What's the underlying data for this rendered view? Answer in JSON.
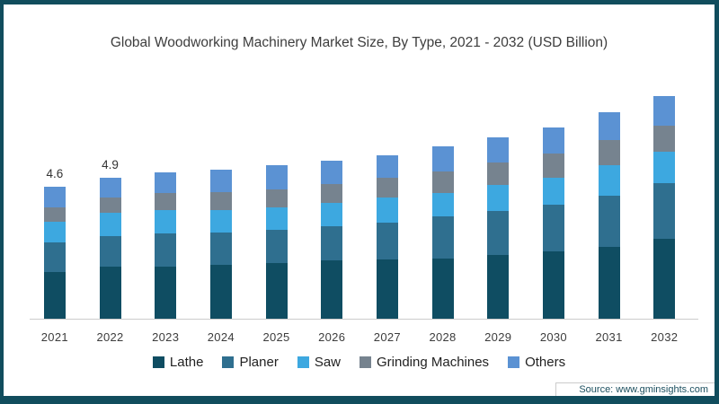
{
  "chart_data": {
    "type": "bar",
    "stacked": true,
    "title": "Global Woodworking Machinery Market Size, By Type, 2021 - 2032 (USD Billion)",
    "xlabel": "",
    "ylabel": "",
    "ylim": [
      0,
      8
    ],
    "grid": false,
    "legend_position": "bottom",
    "categories": [
      "2021",
      "2022",
      "2023",
      "2024",
      "2025",
      "2026",
      "2027",
      "2028",
      "2029",
      "2030",
      "2031",
      "2032"
    ],
    "series": [
      {
        "name": "Lathe",
        "color": "#0f4d62",
        "values": [
          1.62,
          1.8,
          1.82,
          1.87,
          1.95,
          2.02,
          2.05,
          2.1,
          2.21,
          2.34,
          2.51,
          2.77
        ]
      },
      {
        "name": "Planer",
        "color": "#2f6f8f",
        "values": [
          1.05,
          1.08,
          1.14,
          1.12,
          1.16,
          1.19,
          1.28,
          1.46,
          1.53,
          1.64,
          1.77,
          1.95
        ]
      },
      {
        "name": "Saw",
        "color": "#3da8e0",
        "values": [
          0.72,
          0.8,
          0.81,
          0.8,
          0.78,
          0.83,
          0.88,
          0.83,
          0.93,
          0.93,
          1.07,
          1.09
        ]
      },
      {
        "name": "Grinding Machines",
        "color": "#76838f",
        "values": [
          0.5,
          0.53,
          0.6,
          0.62,
          0.62,
          0.64,
          0.68,
          0.73,
          0.77,
          0.85,
          0.86,
          0.9
        ]
      },
      {
        "name": "Others",
        "color": "#5b92d3",
        "values": [
          0.71,
          0.69,
          0.73,
          0.79,
          0.84,
          0.82,
          0.81,
          0.88,
          0.86,
          0.89,
          0.99,
          1.04
        ]
      }
    ],
    "totals": [
      4.6,
      4.9,
      5.1,
      5.2,
      5.35,
      5.5,
      5.7,
      6.0,
      6.3,
      6.65,
      7.2,
      7.75
    ],
    "annotations": {
      "2021": "4.6",
      "2022": "4.9"
    }
  },
  "footer": {
    "source": "Source: www.gminsights.com"
  },
  "frame": {
    "border_color": "#114d5d",
    "background": "#ffffff",
    "baseline_color": "#cccccc"
  }
}
